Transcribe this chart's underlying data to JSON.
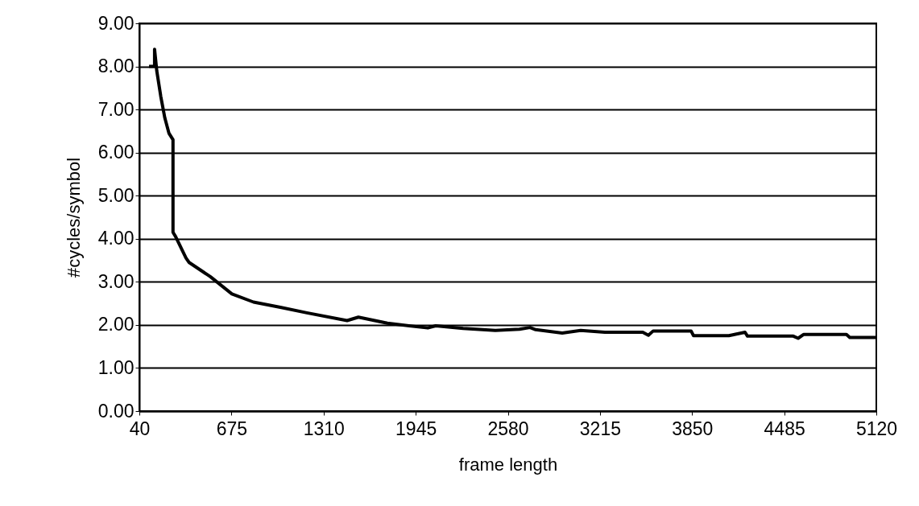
{
  "chart_data": {
    "type": "line",
    "xlabel": "frame length",
    "ylabel": "#cycles/symbol",
    "x": [
      107,
      145,
      145,
      160,
      188,
      216,
      244,
      272,
      272,
      290,
      362,
      383,
      529,
      678,
      827,
      1012,
      1195,
      1472,
      1550,
      1750,
      2028,
      2083,
      2272,
      2494,
      2660,
      2733,
      2772,
      2955,
      3082,
      3249,
      3510,
      3549,
      3582,
      3843,
      3860,
      4104,
      4215,
      4232,
      4548,
      4581,
      4620,
      4914,
      4937,
      5120
    ],
    "series": [
      {
        "color": "#000000",
        "values": [
          8.0,
          8.0,
          8.4,
          7.9,
          7.3,
          6.8,
          6.45,
          6.3,
          4.15,
          4.05,
          3.55,
          3.45,
          3.12,
          2.72,
          2.53,
          2.41,
          2.28,
          2.1,
          2.18,
          2.04,
          1.93,
          1.98,
          1.92,
          1.87,
          1.9,
          1.94,
          1.89,
          1.81,
          1.87,
          1.83,
          1.83,
          1.76,
          1.86,
          1.86,
          1.75,
          1.75,
          1.83,
          1.74,
          1.74,
          1.69,
          1.78,
          1.78,
          1.71,
          1.71
        ]
      }
    ],
    "xlim": [
      40,
      5120
    ],
    "xticks": [
      40,
      675,
      1310,
      1945,
      2580,
      3215,
      3850,
      4485,
      5120
    ],
    "ylim": [
      0,
      9
    ],
    "yticks": [
      {
        "value": 0,
        "label": "0.00"
      },
      {
        "value": 1,
        "label": "1.00"
      },
      {
        "value": 2,
        "label": "2.00"
      },
      {
        "value": 3,
        "label": "3.00"
      },
      {
        "value": 4,
        "label": "4.00"
      },
      {
        "value": 5,
        "label": "5.00"
      },
      {
        "value": 6,
        "label": "6.00"
      },
      {
        "value": 7,
        "label": "7.00"
      },
      {
        "value": 8,
        "label": "8.00"
      },
      {
        "value": 9,
        "label": "9.00"
      }
    ],
    "grid": "y",
    "marker": "none",
    "line_style": "solid"
  }
}
